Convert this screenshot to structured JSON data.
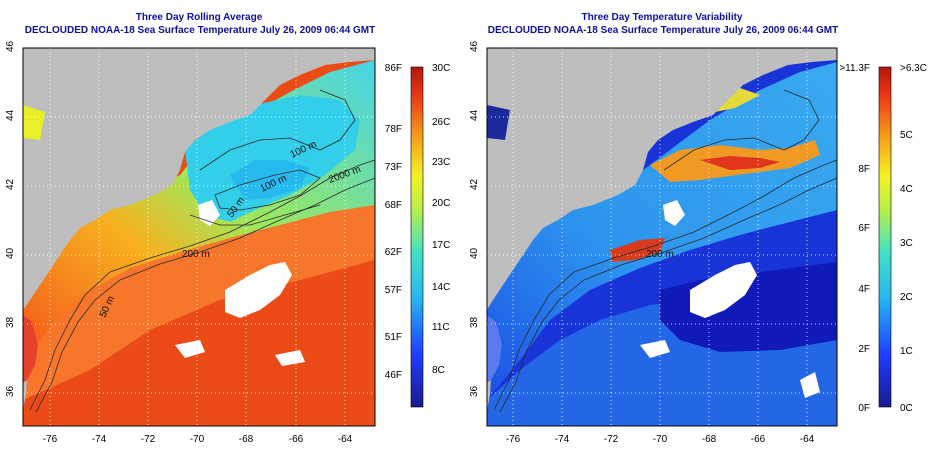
{
  "left_panel": {
    "title": "Three Day Rolling Average",
    "subtitle": "DECLOUDED NOAA-18 Sea Surface Temperature July 26, 2009 06:44 GMT",
    "lat_ticks": [
      "46",
      "44",
      "42",
      "40",
      "38",
      "36"
    ],
    "lon_ticks": [
      "-76",
      "-74",
      "-72",
      "-70",
      "-68",
      "-66",
      "-64"
    ],
    "contour_labels": [
      "100 m",
      "100 m",
      "2000 m",
      "50 m",
      "200 m",
      "50 m"
    ],
    "colorbar_f": [
      "86F",
      "78F",
      "73F",
      "68F",
      "62F",
      "57F",
      "51F",
      "46F"
    ],
    "colorbar_c": [
      "30C",
      "26C",
      "23C",
      "20C",
      "17C",
      "14C",
      "11C",
      "8C"
    ]
  },
  "right_panel": {
    "title": "Three Day Temperature Variability",
    "subtitle": "DECLOUDED NOAA-18 Sea Surface Temperature July 26, 2009 06:44 GMT",
    "lat_ticks": [
      "46",
      "44",
      "42",
      "40",
      "38",
      "36"
    ],
    "lon_ticks": [
      "-76",
      "-74",
      "-72",
      "-70",
      "-68",
      "-66",
      "-64"
    ],
    "contour_labels": [
      "200 m"
    ],
    "colorbar_f": [
      ">11.3F",
      "8F",
      "6F",
      "4F",
      "2F",
      "0F"
    ],
    "colorbar_c": [
      ">6.3C",
      "5C",
      "4C",
      "3C",
      "2C",
      "1C",
      "0C"
    ]
  },
  "colors": {
    "title": "#0f0fa0",
    "land": "#bebebe",
    "cloud": "#ffffff"
  }
}
